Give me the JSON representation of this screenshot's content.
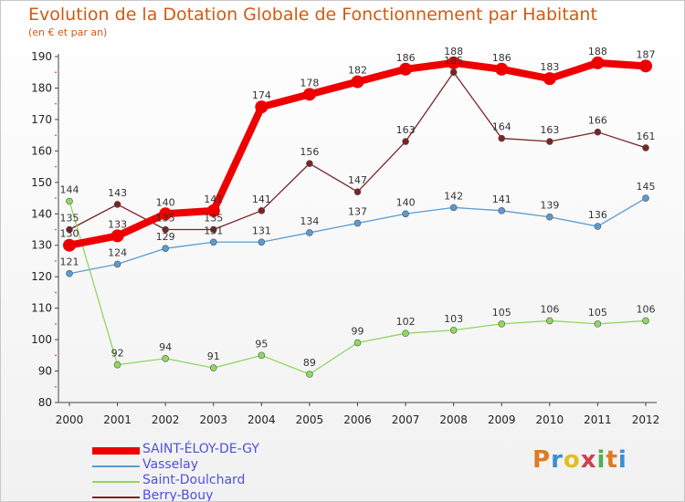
{
  "header": {
    "title": "Evolution de la Dotation Globale de Fonctionnement par Habitant",
    "subtitle": "(en € et par an)"
  },
  "logo": {
    "text": "Proxiti",
    "colors": [
      "#e07a20",
      "#3a8fd0",
      "#e0c020",
      "#d04050",
      "#50b050",
      "#e07a20",
      "#3a8fd0"
    ]
  },
  "chart_data": {
    "type": "line",
    "title": "Evolution de la Dotation Globale de Fonctionnement par Habitant",
    "subtitle": "(en € et par an)",
    "x": [
      "2000",
      "2001",
      "2002",
      "2003",
      "2004",
      "2005",
      "2006",
      "2007",
      "2008",
      "2009",
      "2010",
      "2011",
      "2012"
    ],
    "ylim": [
      80,
      190
    ],
    "yticks": [
      80,
      90,
      100,
      110,
      120,
      130,
      140,
      150,
      160,
      170,
      180,
      190
    ],
    "grid": false,
    "legend_position": "bottom-left",
    "series": [
      {
        "name": "SAINT-ÉLOY-DE-GY",
        "color": "#ee0000",
        "width": 8,
        "marker": 7,
        "values": [
          130,
          133,
          140,
          141,
          174,
          178,
          182,
          186,
          188,
          186,
          183,
          188,
          187
        ],
        "labels": [
          "130",
          "133",
          "140",
          "141",
          "174",
          "178",
          "182",
          "186",
          "188",
          "186",
          "183",
          "188",
          "187"
        ]
      },
      {
        "name": "Vasselay",
        "color": "#5a9bd0",
        "width": 1.3,
        "marker": 3.5,
        "values": [
          121,
          124,
          129,
          131,
          131,
          134,
          137,
          140,
          142,
          141,
          139,
          136,
          145
        ],
        "labels": [
          "121",
          "124",
          "129",
          "131",
          "131",
          "134",
          "137",
          "140",
          "142",
          "141",
          "139",
          "136",
          "145"
        ]
      },
      {
        "name": "Saint-Doulchard",
        "color": "#8ed860",
        "width": 1.3,
        "marker": 3.5,
        "values": [
          144,
          92,
          94,
          91,
          95,
          89,
          99,
          102,
          103,
          105,
          106,
          105,
          106
        ],
        "labels": [
          "144",
          "92",
          "94",
          "91",
          "95",
          "89",
          "99",
          "102",
          "103",
          "105",
          "106",
          "105",
          "106"
        ]
      },
      {
        "name": "Berry-Bouy",
        "color": "#7a2424",
        "width": 1.3,
        "marker": 3.5,
        "values": [
          135,
          143,
          135,
          135,
          141,
          156,
          147,
          163,
          185,
          164,
          163,
          166,
          161
        ],
        "labels": [
          "135",
          "143",
          "135",
          "135",
          "141",
          "156",
          "147",
          "163",
          "185",
          "164",
          "163",
          "166",
          "161"
        ]
      }
    ]
  }
}
